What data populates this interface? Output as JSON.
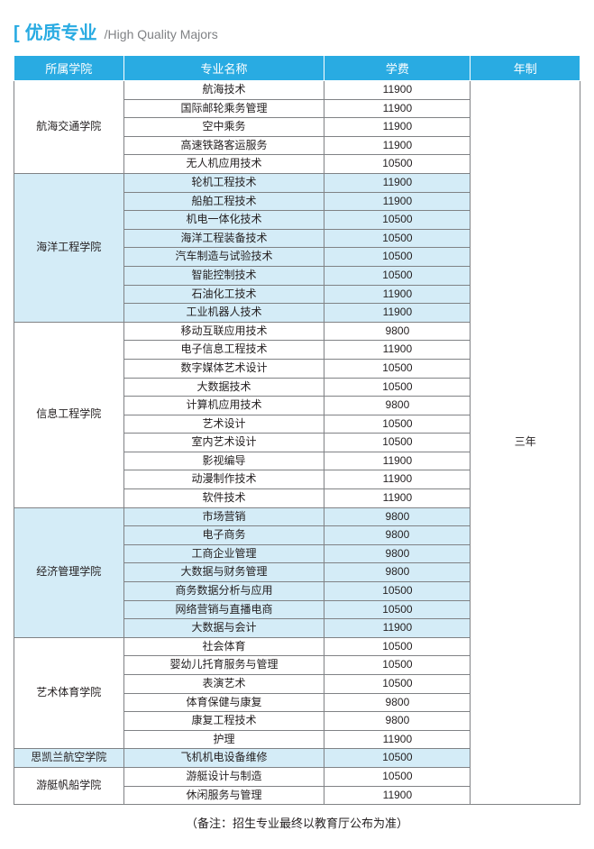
{
  "title": {
    "bracket": "[",
    "cn": "优质专业",
    "en": "/High Quality Majors"
  },
  "headers": {
    "college": "所属学院",
    "major": "专业名称",
    "tuition": "学费",
    "duration": "年制"
  },
  "duration_text": "三年",
  "note": "（备注：招生专业最终以教育厅公布为准）",
  "groups": [
    {
      "college": "航海交通学院",
      "shade": false,
      "rows": [
        {
          "major": "航海技术",
          "tuition": "11900"
        },
        {
          "major": "国际邮轮乘务管理",
          "tuition": "11900"
        },
        {
          "major": "空中乘务",
          "tuition": "11900"
        },
        {
          "major": "高速铁路客运服务",
          "tuition": "11900"
        },
        {
          "major": "无人机应用技术",
          "tuition": "10500"
        }
      ]
    },
    {
      "college": "海洋工程学院",
      "shade": true,
      "rows": [
        {
          "major": "轮机工程技术",
          "tuition": "11900"
        },
        {
          "major": "船舶工程技术",
          "tuition": "11900"
        },
        {
          "major": "机电一体化技术",
          "tuition": "10500"
        },
        {
          "major": "海洋工程装备技术",
          "tuition": "10500"
        },
        {
          "major": "汽车制造与试验技术",
          "tuition": "10500"
        },
        {
          "major": "智能控制技术",
          "tuition": "10500"
        },
        {
          "major": "石油化工技术",
          "tuition": "11900"
        },
        {
          "major": "工业机器人技术",
          "tuition": "11900"
        }
      ]
    },
    {
      "college": "信息工程学院",
      "shade": false,
      "rows": [
        {
          "major": "移动互联应用技术",
          "tuition": "9800"
        },
        {
          "major": "电子信息工程技术",
          "tuition": "11900"
        },
        {
          "major": "数字媒体艺术设计",
          "tuition": "10500"
        },
        {
          "major": "大数据技术",
          "tuition": "10500"
        },
        {
          "major": "计算机应用技术",
          "tuition": "9800"
        },
        {
          "major": "艺术设计",
          "tuition": "10500"
        },
        {
          "major": "室内艺术设计",
          "tuition": "10500"
        },
        {
          "major": "影视编导",
          "tuition": "11900"
        },
        {
          "major": "动漫制作技术",
          "tuition": "11900"
        },
        {
          "major": "软件技术",
          "tuition": "11900"
        }
      ]
    },
    {
      "college": "经济管理学院",
      "shade": true,
      "rows": [
        {
          "major": "市场营销",
          "tuition": "9800"
        },
        {
          "major": "电子商务",
          "tuition": "9800"
        },
        {
          "major": "工商企业管理",
          "tuition": "9800"
        },
        {
          "major": "大数据与财务管理",
          "tuition": "9800"
        },
        {
          "major": "商务数据分析与应用",
          "tuition": "10500"
        },
        {
          "major": "网络营销与直播电商",
          "tuition": "10500"
        },
        {
          "major": "大数据与会计",
          "tuition": "11900"
        }
      ]
    },
    {
      "college": "艺术体育学院",
      "shade": false,
      "rows": [
        {
          "major": "社会体育",
          "tuition": "10500"
        },
        {
          "major": "婴幼儿托育服务与管理",
          "tuition": "10500"
        },
        {
          "major": "表演艺术",
          "tuition": "10500"
        },
        {
          "major": "体育保健与康复",
          "tuition": "9800"
        },
        {
          "major": "康复工程技术",
          "tuition": "9800"
        },
        {
          "major": "护理",
          "tuition": "11900"
        }
      ]
    },
    {
      "college": "思凯兰航空学院",
      "shade": true,
      "rows": [
        {
          "major": "飞机机电设备维修",
          "tuition": "10500"
        }
      ]
    },
    {
      "college": "游艇帆船学院",
      "shade": false,
      "rows": [
        {
          "major": "游艇设计与制造",
          "tuition": "10500"
        },
        {
          "major": "休闲服务与管理",
          "tuition": "11900"
        }
      ]
    }
  ]
}
